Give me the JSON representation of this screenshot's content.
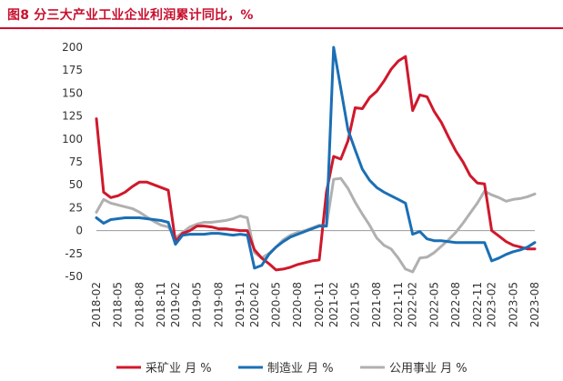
{
  "title": "图8  分三大产业工业企业利润累计同比，%",
  "colors": {
    "title": "#c8102e",
    "mining": "#d0182b",
    "manufacturing": "#1a6fb5",
    "utilities": "#b0b0b0",
    "zero_line": "#9a9a9a"
  },
  "chart_data": {
    "type": "line",
    "title": "图8  分三大产业工业企业利润累计同比，%",
    "xlabel": "",
    "ylabel": "",
    "ylim": [
      -50,
      200
    ],
    "yticks": [
      -50,
      -25,
      0,
      25,
      50,
      75,
      100,
      125,
      150,
      175,
      200
    ],
    "grid": false,
    "legend_position": "bottom",
    "x_tick_labels": [
      "2018-02",
      "2018-05",
      "2018-08",
      "2018-11",
      "2019-02",
      "2019-05",
      "2019-08",
      "2019-11",
      "2020-02",
      "2020-05",
      "2020-08",
      "2020-11",
      "2021-02",
      "2021-05",
      "2021-08",
      "2021-11",
      "2022-02",
      "2022-05",
      "2022-08",
      "2022-11",
      "2023-02",
      "2023-05",
      "2023-08"
    ],
    "x": [
      "2018-02",
      "2018-03",
      "2018-04",
      "2018-05",
      "2018-06",
      "2018-07",
      "2018-08",
      "2018-09",
      "2018-10",
      "2018-11",
      "2018-12",
      "2019-02",
      "2019-03",
      "2019-04",
      "2019-05",
      "2019-06",
      "2019-07",
      "2019-08",
      "2019-09",
      "2019-10",
      "2019-11",
      "2019-12",
      "2020-02",
      "2020-03",
      "2020-04",
      "2020-05",
      "2020-06",
      "2020-07",
      "2020-08",
      "2020-09",
      "2020-10",
      "2020-11",
      "2020-12",
      "2021-02",
      "2021-03",
      "2021-04",
      "2021-05",
      "2021-06",
      "2021-07",
      "2021-08",
      "2021-09",
      "2021-10",
      "2021-11",
      "2021-12",
      "2022-02",
      "2022-03",
      "2022-04",
      "2022-05",
      "2022-06",
      "2022-07",
      "2022-08",
      "2022-09",
      "2022-10",
      "2022-11",
      "2022-12",
      "2023-02",
      "2023-03",
      "2023-04",
      "2023-05",
      "2023-06",
      "2023-07",
      "2023-08"
    ],
    "series": [
      {
        "name": "采矿业  月 %",
        "color": "#d0182b",
        "values": [
          122,
          42,
          36,
          38,
          42,
          48,
          53,
          53,
          50,
          47,
          44,
          -12,
          -3,
          0,
          5,
          5,
          4,
          2,
          2,
          1,
          0,
          0,
          -21,
          -30,
          -36,
          -43,
          -42,
          -40,
          -37,
          -35,
          -33,
          -32,
          42,
          81,
          78,
          98,
          134,
          133,
          145,
          152,
          163,
          176,
          185,
          190,
          131,
          148,
          146,
          130,
          118,
          102,
          87,
          75,
          60,
          52,
          51,
          0,
          -6,
          -12,
          -16,
          -18,
          -20,
          -20
        ]
      },
      {
        "name": "制造业  月 %",
        "color": "#1a6fb5",
        "values": [
          14,
          8,
          12,
          13,
          14,
          14,
          14,
          13,
          12,
          11,
          9,
          -15,
          -5,
          -4,
          -4,
          -4,
          -3,
          -3,
          -4,
          -5,
          -4,
          -5,
          -41,
          -38,
          -26,
          -18,
          -12,
          -7,
          -4,
          -1,
          2,
          5,
          5,
          200,
          155,
          110,
          88,
          67,
          55,
          47,
          42,
          38,
          34,
          30,
          -4,
          -1,
          -9,
          -11,
          -11,
          -12,
          -13,
          -13,
          -13,
          -13,
          -13,
          -33,
          -30,
          -26,
          -23,
          -21,
          -18,
          -13
        ]
      },
      {
        "name": "公用事业  月 %",
        "color": "#b0b0b0",
        "values": [
          20,
          34,
          30,
          28,
          26,
          24,
          20,
          15,
          10,
          6,
          4,
          -8,
          -2,
          4,
          7,
          9,
          9,
          10,
          11,
          13,
          16,
          14,
          -24,
          -30,
          -25,
          -18,
          -10,
          -5,
          -2,
          0,
          3,
          6,
          5,
          56,
          57,
          46,
          31,
          18,
          6,
          -8,
          -16,
          -20,
          -30,
          -42,
          -45,
          -30,
          -29,
          -24,
          -17,
          -10,
          -2,
          8,
          19,
          30,
          43,
          39,
          36,
          32,
          34,
          35,
          37,
          40
        ]
      }
    ]
  },
  "legend": {
    "mining": "采矿业  月 %",
    "manufacturing": "制造业  月 %",
    "utilities": "公用事业  月 %"
  }
}
